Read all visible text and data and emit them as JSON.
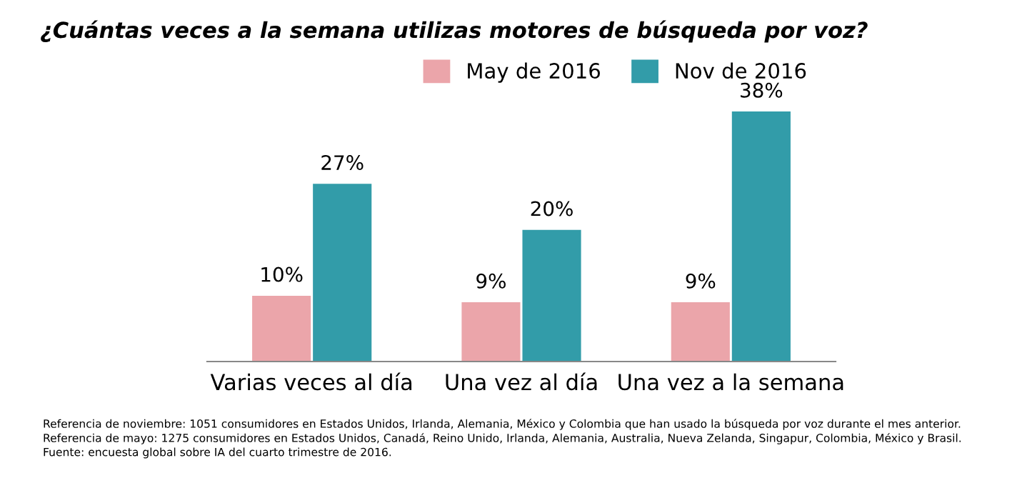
{
  "chart_data": {
    "type": "bar",
    "title": "¿Cuántas veces a la semana utilizas motores de búsqueda por voz?",
    "categories": [
      "Varias veces al día",
      "Una vez al día",
      "Una vez a la semana"
    ],
    "series": [
      {
        "name": "May de 2016",
        "color": "#eba5aa",
        "values": [
          10,
          9,
          9
        ],
        "value_labels": [
          "10%",
          "9%",
          "9%"
        ]
      },
      {
        "name": "Nov de 2016",
        "color": "#329ca9",
        "values": [
          27,
          20,
          38
        ],
        "value_labels": [
          "27%",
          "20%",
          "38%"
        ]
      }
    ],
    "legend": "top",
    "grid": false,
    "annotations": [
      "Referencia de noviembre: 1051 consumidores en Estados Unidos, Irlanda, Alemania, México y Colombia que han usado la búsqueda por voz durante el mes anterior.",
      "Referencia de mayo: 1275 consumidores en Estados Unidos, Canadá, Reino Unido, Irlanda, Alemania, Australia, Nueva Zelanda, Singapur, Colombia, México y Brasil.",
      "Fuente: encuesta global sobre IA del cuarto trimestre de 2016."
    ]
  }
}
